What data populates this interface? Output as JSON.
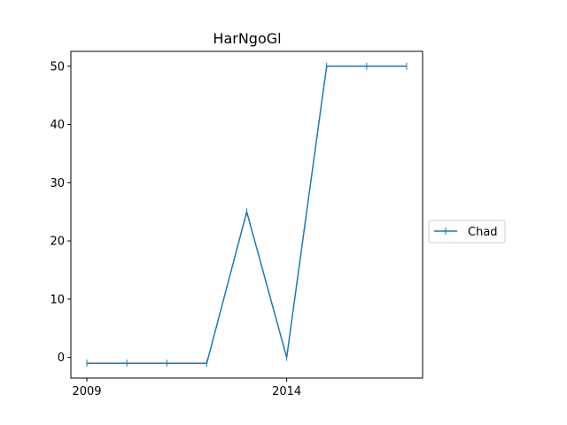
{
  "chart_data": {
    "type": "line",
    "title": "HarNgoGl",
    "xlabel": "",
    "ylabel": "",
    "x": [
      2009,
      2010,
      2011,
      2012,
      2013,
      2014,
      2015,
      2016,
      2017
    ],
    "series": [
      {
        "name": "Chad",
        "values": [
          -1,
          -1,
          -1,
          -1,
          25,
          0,
          50,
          50,
          50
        ],
        "color": "#1f77b4",
        "marker": "|"
      }
    ],
    "xlim": [
      2008.6,
      2017.4
    ],
    "ylim": [
      -3.55,
      52.55
    ],
    "x_ticks": [
      2009,
      2014
    ],
    "y_ticks": [
      0,
      10,
      20,
      30,
      40,
      50
    ],
    "grid": false,
    "legend_position": "center-right"
  }
}
